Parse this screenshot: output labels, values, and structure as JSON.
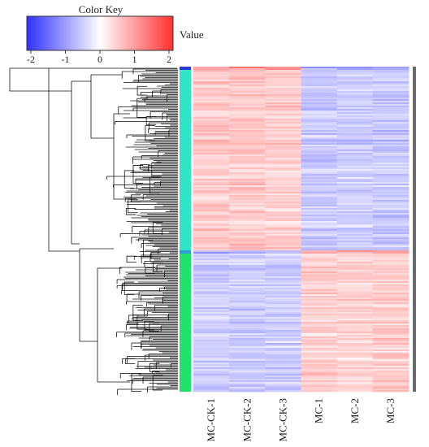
{
  "chart_data": {
    "type": "heatmap",
    "title": "",
    "color_key": {
      "title": "Color Key",
      "value_label": "Value",
      "range": [
        -2,
        2
      ],
      "ticks": [
        "-2",
        "-1",
        "0",
        "1",
        "2"
      ],
      "colors": {
        "low": "#3030ff",
        "mid": "#ffffff",
        "high": "#ff3030"
      }
    },
    "columns": [
      "MC-CK-1",
      "MC-CK-2",
      "MC-CK-3",
      "MC-1",
      "MC-2",
      "MC-3"
    ],
    "clusters": [
      {
        "color": "#2b35d6",
        "share": 0.012,
        "profile": [
          1.0,
          1.0,
          1.0,
          -0.9,
          -0.9,
          -1.1
        ]
      },
      {
        "color": "#2ee6c6",
        "share": 0.555,
        "profile": [
          0.55,
          0.55,
          0.5,
          -0.55,
          -0.5,
          -0.55
        ]
      },
      {
        "color": "#2b9fd6",
        "share": 0.01,
        "profile": [
          -0.9,
          -0.9,
          -0.9,
          1.0,
          1.0,
          1.1
        ]
      },
      {
        "color": "#21e26a",
        "share": 0.423,
        "profile": [
          -0.5,
          -0.5,
          -0.5,
          0.5,
          0.45,
          0.5
        ]
      }
    ],
    "side_bar_color": "#6b6b6b"
  }
}
